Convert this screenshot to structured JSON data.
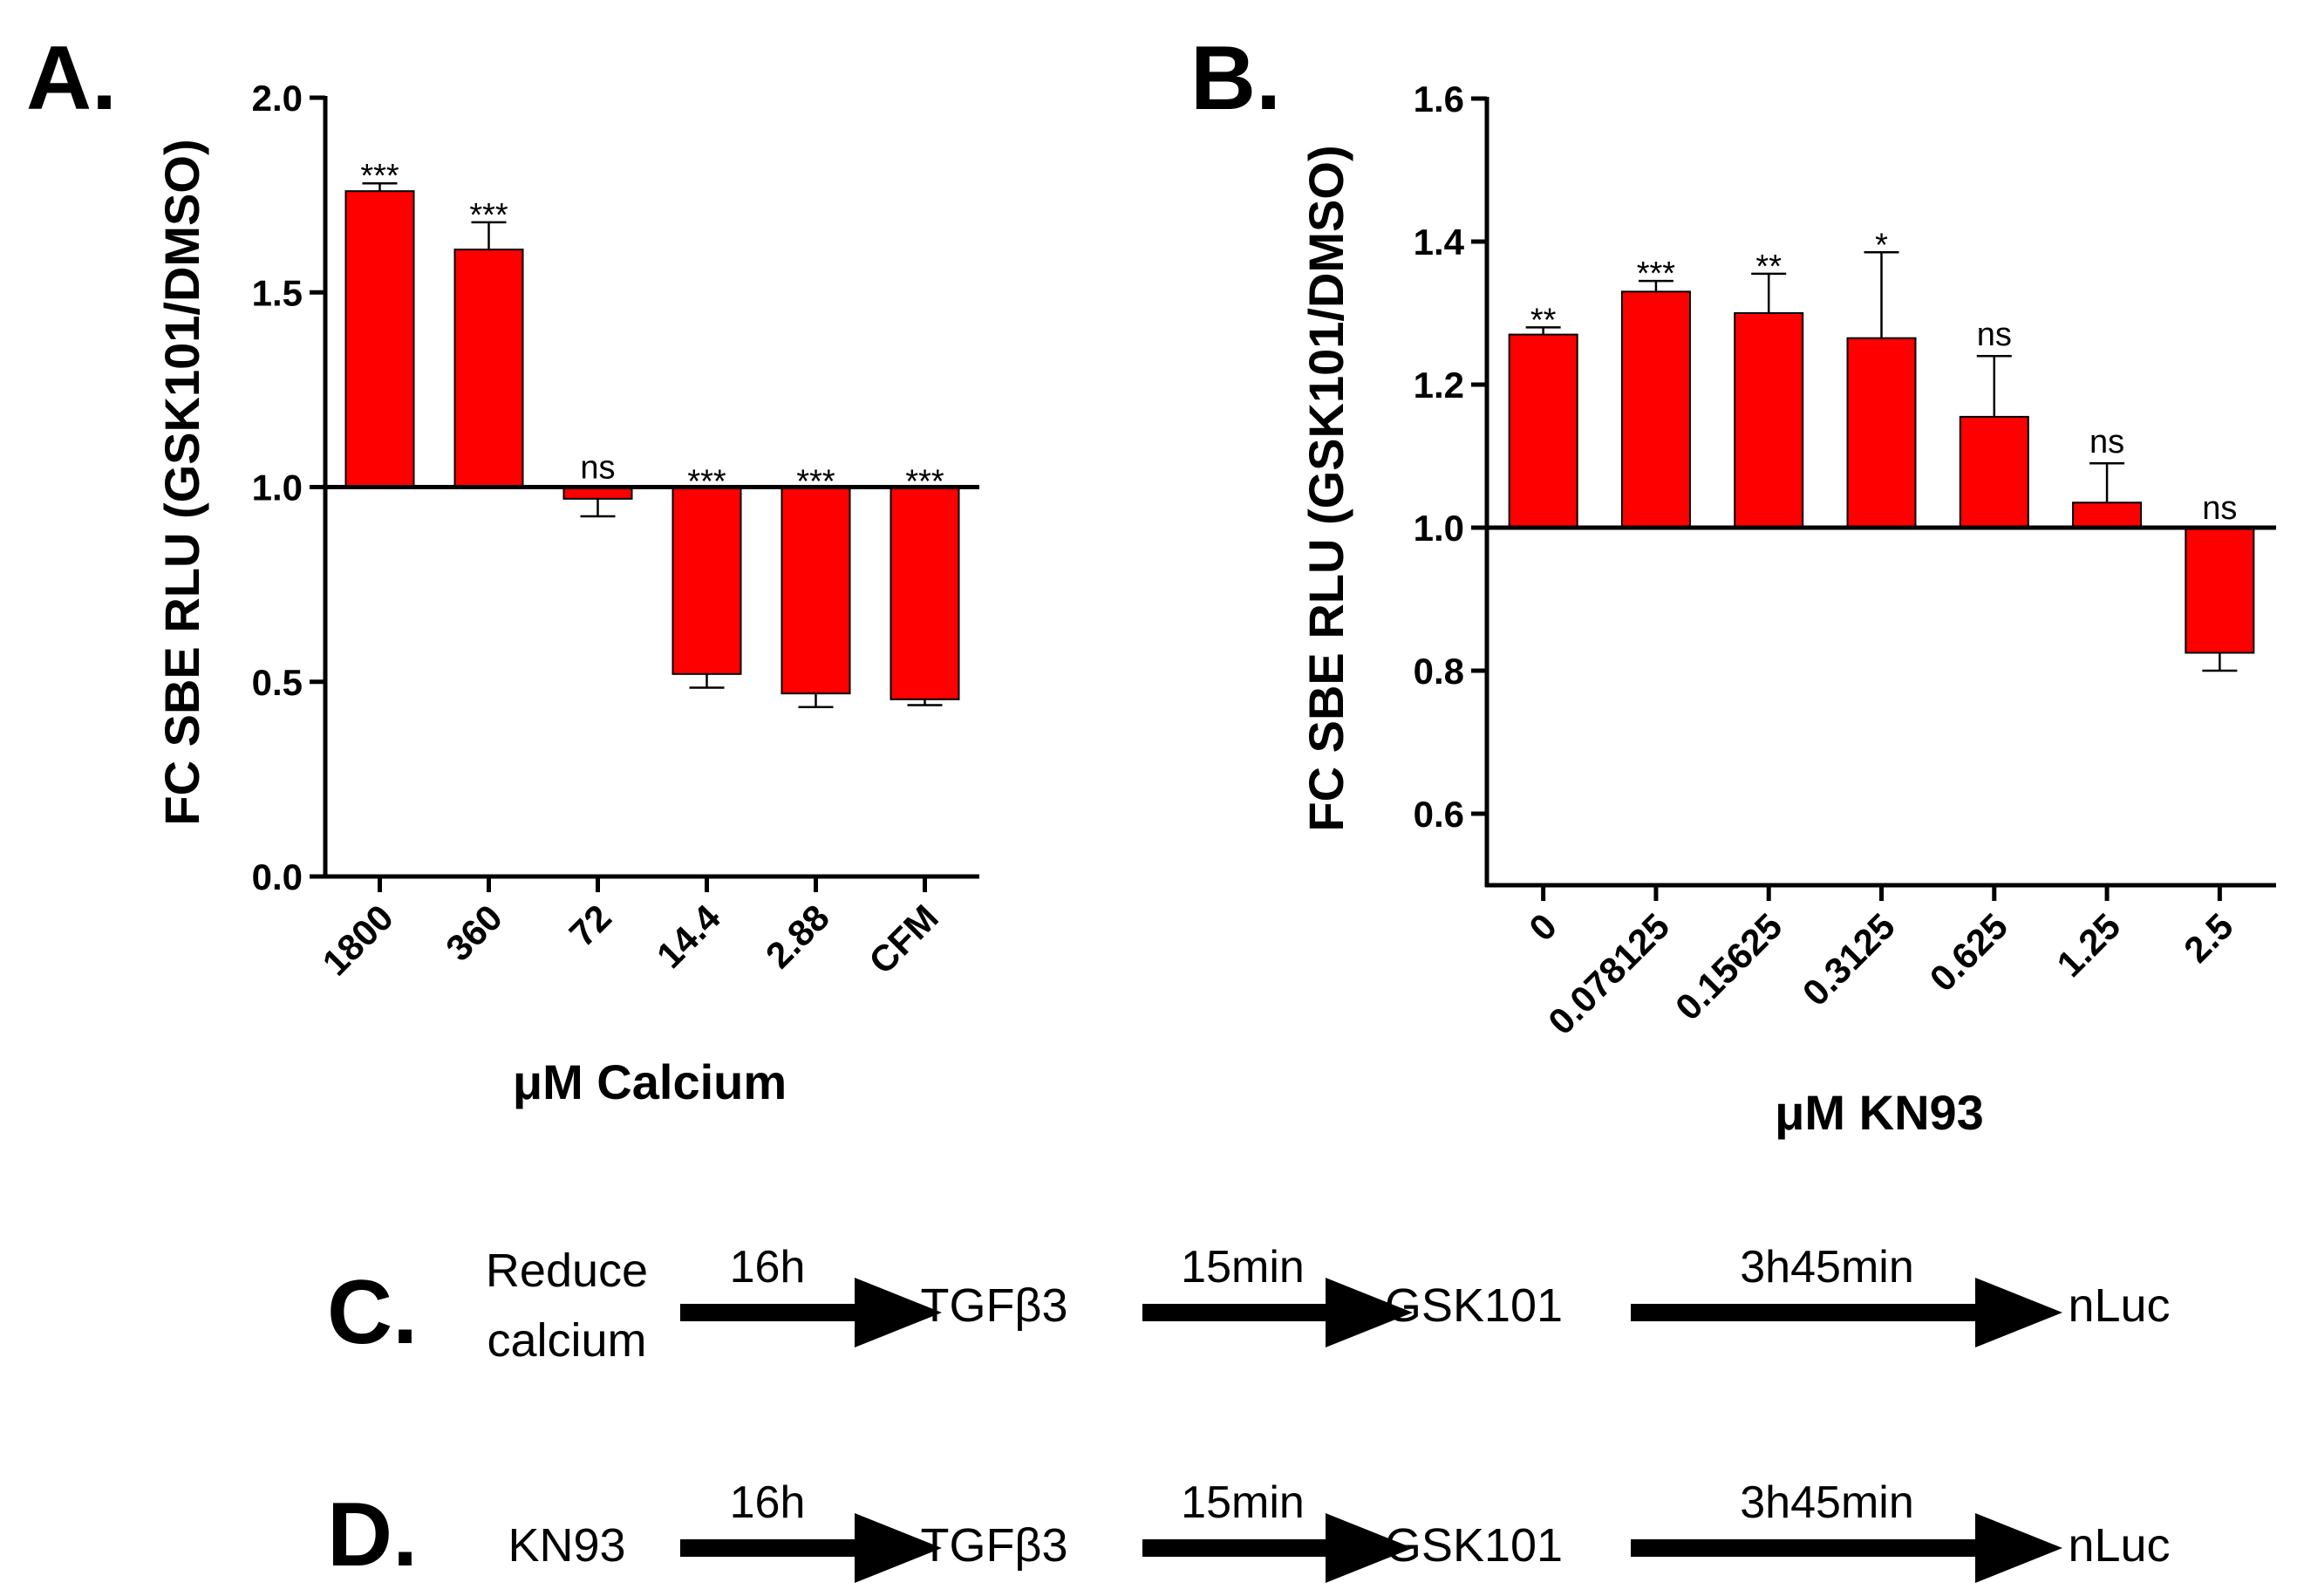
{
  "chart_data": [
    {
      "panel": "A.",
      "type": "bar",
      "baseline": 1.0,
      "categories": [
        "1800",
        "360",
        "72",
        "14.4",
        "2.88",
        "CFM"
      ],
      "values": [
        1.76,
        1.61,
        0.97,
        0.52,
        0.47,
        0.455
      ],
      "errors": [
        0.02,
        0.07,
        0.045,
        0.035,
        0.035,
        0.015
      ],
      "significance": [
        "***",
        "***",
        "ns",
        "***",
        "***",
        "***"
      ],
      "xlabel": "μM Calcium",
      "ylabel": "FC SBE RLU (GSK101/DMSO)",
      "ylim": [
        0.0,
        2.0
      ],
      "yticks": [
        "0.0",
        "0.5",
        "1.0",
        "1.5",
        "2.0"
      ],
      "bar_color": "#ff0000"
    },
    {
      "panel": "B.",
      "type": "bar",
      "baseline": 1.0,
      "categories": [
        "0",
        "0.078125",
        "0.15625",
        "0.3125",
        "0.625",
        "1.25",
        "2.5"
      ],
      "values": [
        1.27,
        1.33,
        1.3,
        1.265,
        1.155,
        1.035,
        0.825
      ],
      "errors": [
        0.01,
        0.015,
        0.055,
        0.12,
        0.085,
        0.055,
        0.025
      ],
      "significance": [
        "**",
        "***",
        "**",
        "*",
        "ns",
        "ns",
        "ns"
      ],
      "xlabel": "μM KN93",
      "ylabel": "FC SBE RLU (GSK101/DMSO)",
      "ylim": [
        0.5,
        1.6
      ],
      "yticks": [
        "0.6",
        "0.8",
        "1.0",
        "1.2",
        "1.4",
        "1.6"
      ],
      "bar_color": "#ff0000"
    }
  ],
  "diagrams": {
    "c": {
      "letter": "C.",
      "start_line1": "Reduce",
      "start_line2": "calcium",
      "step1_time": "16h",
      "step1_target": "TGFβ3",
      "step2_time": "15min",
      "step2_target": "GSK101",
      "step3_time": "3h45min",
      "step3_target": "nLuc"
    },
    "d": {
      "letter": "D.",
      "start_line1": "KN93",
      "step1_time": "16h",
      "step1_target": "TGFβ3",
      "step2_time": "15min",
      "step2_target": "GSK101",
      "step3_time": "3h45min",
      "step3_target": "nLuc"
    }
  }
}
